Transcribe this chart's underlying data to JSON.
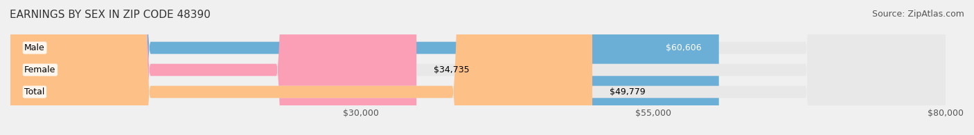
{
  "title": "EARNINGS BY SEX IN ZIP CODE 48390",
  "source": "Source: ZipAtlas.com",
  "categories": [
    "Male",
    "Female",
    "Total"
  ],
  "values": [
    60606,
    34735,
    49779
  ],
  "bar_colors": [
    "#6baed6",
    "#fa9fb5",
    "#fdc086"
  ],
  "bar_labels": [
    "$60,606",
    "$34,735",
    "$49,779"
  ],
  "label_colors": [
    "white",
    "black",
    "black"
  ],
  "xmin": 0,
  "xmax": 80000,
  "xticks": [
    30000,
    55000,
    80000
  ],
  "xtick_labels": [
    "$30,000",
    "$55,000",
    "$80,000"
  ],
  "background_color": "#f0f0f0",
  "bar_background_color": "#e8e8e8",
  "title_fontsize": 11,
  "source_fontsize": 9,
  "tick_fontsize": 9,
  "label_fontsize": 9,
  "category_fontsize": 9
}
